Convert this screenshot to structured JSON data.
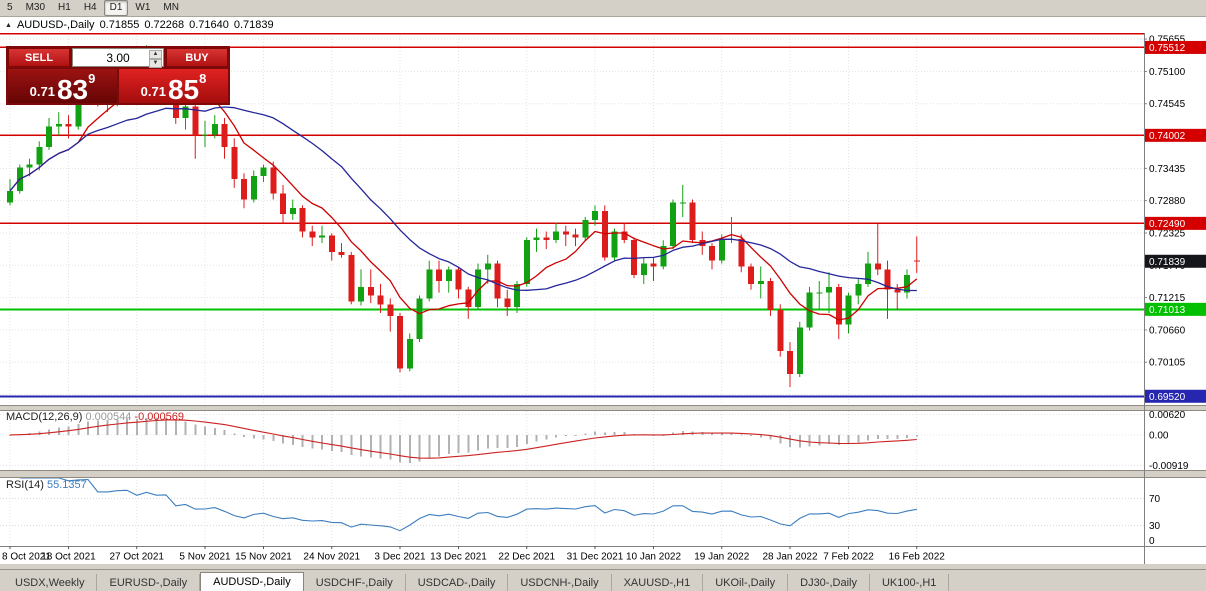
{
  "toolbar": {
    "timeframes": [
      "5",
      "M30",
      "H1",
      "H4",
      "D1",
      "W1",
      "MN"
    ],
    "active": "D1"
  },
  "title": {
    "collapse": "▲",
    "symbol": "AUDUSD-,Daily",
    "open": "0.71855",
    "high": "0.72268",
    "low": "0.71640",
    "close": "0.71839"
  },
  "trade_panel": {
    "sell_label": "SELL",
    "buy_label": "BUY",
    "volume": "3.00",
    "sell_price_small": "0.71",
    "sell_price_big": "83",
    "sell_price_sup": "9",
    "buy_price_small": "0.71",
    "buy_price_big": "85",
    "buy_price_sup": "8"
  },
  "colors": {
    "chrome": "#d4d0c8",
    "panel_red_dark": "#7d0909",
    "candle_up": "#12a112",
    "candle_down": "#dd1c1c",
    "price_badge": "#15151c",
    "grid": "#e3e3e3",
    "axis_line": "#808080"
  },
  "chart_data": {
    "type": "candlestick",
    "symbol": "AUDUSD-",
    "timeframe": "Daily",
    "candles": [
      [
        0.7285,
        0.7325,
        0.728,
        0.7305
      ],
      [
        0.7305,
        0.735,
        0.73,
        0.7345
      ],
      [
        0.7345,
        0.736,
        0.733,
        0.735
      ],
      [
        0.735,
        0.739,
        0.734,
        0.738
      ],
      [
        0.738,
        0.743,
        0.7375,
        0.7415
      ],
      [
        0.7415,
        0.744,
        0.74,
        0.742
      ],
      [
        0.742,
        0.7435,
        0.7395,
        0.7415
      ],
      [
        0.7415,
        0.748,
        0.741,
        0.7475
      ],
      [
        0.7475,
        0.7545,
        0.747,
        0.7515
      ],
      [
        0.7515,
        0.752,
        0.745,
        0.7465
      ],
      [
        0.7465,
        0.748,
        0.744,
        0.7465
      ],
      [
        0.7465,
        0.75,
        0.745,
        0.749
      ],
      [
        0.749,
        0.7535,
        0.748,
        0.75
      ],
      [
        0.75,
        0.751,
        0.7455,
        0.747
      ],
      [
        0.747,
        0.7555,
        0.746,
        0.754
      ],
      [
        0.754,
        0.7545,
        0.749,
        0.7518
      ],
      [
        0.7518,
        0.7535,
        0.75,
        0.7525
      ],
      [
        0.7525,
        0.753,
        0.742,
        0.743
      ],
      [
        0.743,
        0.747,
        0.741,
        0.745
      ],
      [
        0.745,
        0.7455,
        0.736,
        0.74
      ],
      [
        0.74,
        0.7425,
        0.738,
        0.7402
      ],
      [
        0.7402,
        0.7435,
        0.7395,
        0.742
      ],
      [
        0.742,
        0.743,
        0.736,
        0.738
      ],
      [
        0.738,
        0.7395,
        0.731,
        0.7325
      ],
      [
        0.7325,
        0.7335,
        0.7275,
        0.729
      ],
      [
        0.729,
        0.734,
        0.7285,
        0.733
      ],
      [
        0.733,
        0.735,
        0.732,
        0.7345
      ],
      [
        0.7345,
        0.7355,
        0.729,
        0.73
      ],
      [
        0.73,
        0.7315,
        0.725,
        0.7265
      ],
      [
        0.7265,
        0.729,
        0.7255,
        0.7275
      ],
      [
        0.7275,
        0.728,
        0.7225,
        0.7235
      ],
      [
        0.7235,
        0.7245,
        0.721,
        0.7225
      ],
      [
        0.7225,
        0.7245,
        0.7215,
        0.7228
      ],
      [
        0.7228,
        0.7232,
        0.7185,
        0.72
      ],
      [
        0.72,
        0.7215,
        0.719,
        0.7195
      ],
      [
        0.7195,
        0.72,
        0.711,
        0.7115
      ],
      [
        0.7115,
        0.717,
        0.7108,
        0.714
      ],
      [
        0.714,
        0.717,
        0.7112,
        0.7125
      ],
      [
        0.7125,
        0.7145,
        0.7095,
        0.711
      ],
      [
        0.711,
        0.712,
        0.7063,
        0.709
      ],
      [
        0.709,
        0.7095,
        0.6993,
        0.7
      ],
      [
        0.7,
        0.706,
        0.6995,
        0.705
      ],
      [
        0.705,
        0.7125,
        0.7045,
        0.712
      ],
      [
        0.712,
        0.7185,
        0.7115,
        0.717
      ],
      [
        0.717,
        0.7185,
        0.713,
        0.715
      ],
      [
        0.715,
        0.7175,
        0.713,
        0.717
      ],
      [
        0.717,
        0.7175,
        0.712,
        0.7135
      ],
      [
        0.7135,
        0.714,
        0.7085,
        0.7105
      ],
      [
        0.7105,
        0.718,
        0.71,
        0.717
      ],
      [
        0.717,
        0.7195,
        0.7145,
        0.718
      ],
      [
        0.718,
        0.7185,
        0.7105,
        0.712
      ],
      [
        0.712,
        0.7135,
        0.709,
        0.7105
      ],
      [
        0.7105,
        0.715,
        0.7095,
        0.7145
      ],
      [
        0.7145,
        0.7225,
        0.714,
        0.722
      ],
      [
        0.722,
        0.724,
        0.72,
        0.7225
      ],
      [
        0.7225,
        0.7235,
        0.7205,
        0.722
      ],
      [
        0.722,
        0.725,
        0.7215,
        0.7235
      ],
      [
        0.7235,
        0.7245,
        0.721,
        0.723
      ],
      [
        0.723,
        0.724,
        0.721,
        0.7225
      ],
      [
        0.7225,
        0.726,
        0.722,
        0.7255
      ],
      [
        0.7255,
        0.728,
        0.7245,
        0.727
      ],
      [
        0.727,
        0.728,
        0.7185,
        0.719
      ],
      [
        0.719,
        0.724,
        0.7185,
        0.7235
      ],
      [
        0.7235,
        0.725,
        0.7215,
        0.722
      ],
      [
        0.722,
        0.7225,
        0.7155,
        0.716
      ],
      [
        0.716,
        0.719,
        0.7145,
        0.718
      ],
      [
        0.718,
        0.719,
        0.715,
        0.7175
      ],
      [
        0.7175,
        0.722,
        0.717,
        0.721
      ],
      [
        0.721,
        0.729,
        0.7205,
        0.7285
      ],
      [
        0.7285,
        0.7315,
        0.726,
        0.7285
      ],
      [
        0.7285,
        0.729,
        0.7215,
        0.722
      ],
      [
        0.722,
        0.7235,
        0.7195,
        0.721
      ],
      [
        0.721,
        0.7215,
        0.717,
        0.7185
      ],
      [
        0.7185,
        0.723,
        0.718,
        0.722
      ],
      [
        0.722,
        0.726,
        0.7215,
        0.7222
      ],
      [
        0.7222,
        0.723,
        0.7165,
        0.7175
      ],
      [
        0.7175,
        0.718,
        0.7135,
        0.7145
      ],
      [
        0.7145,
        0.7175,
        0.712,
        0.715
      ],
      [
        0.715,
        0.7155,
        0.709,
        0.71
      ],
      [
        0.71,
        0.711,
        0.702,
        0.703
      ],
      [
        0.703,
        0.7045,
        0.6968,
        0.699
      ],
      [
        0.699,
        0.708,
        0.6985,
        0.707
      ],
      [
        0.707,
        0.714,
        0.7065,
        0.713
      ],
      [
        0.713,
        0.715,
        0.71,
        0.713
      ],
      [
        0.713,
        0.7165,
        0.7095,
        0.714
      ],
      [
        0.714,
        0.7145,
        0.705,
        0.7075
      ],
      [
        0.7075,
        0.713,
        0.706,
        0.7125
      ],
      [
        0.7125,
        0.7155,
        0.711,
        0.7145
      ],
      [
        0.7145,
        0.72,
        0.714,
        0.718
      ],
      [
        0.718,
        0.7249,
        0.716,
        0.717
      ],
      [
        0.717,
        0.7185,
        0.7085,
        0.7135
      ],
      [
        0.7135,
        0.7145,
        0.71,
        0.713
      ],
      [
        0.713,
        0.717,
        0.712,
        0.716
      ],
      [
        0.71855,
        0.72268,
        0.7164,
        0.71839
      ]
    ],
    "date_ticks": [
      [
        0,
        "8 Oct 2021"
      ],
      [
        6,
        "18 Oct 2021"
      ],
      [
        13,
        "27 Oct 2021"
      ],
      [
        20,
        "5 Nov 2021"
      ],
      [
        26,
        "15 Nov 2021"
      ],
      [
        33,
        "24 Nov 2021"
      ],
      [
        40,
        "3 Dec 2021"
      ],
      [
        46,
        "13 Dec 2021"
      ],
      [
        53,
        "22 Dec 2021"
      ],
      [
        60,
        "31 Dec 2021"
      ],
      [
        66,
        "10 Jan 2022"
      ],
      [
        73,
        "19 Jan 2022"
      ],
      [
        80,
        "28 Jan 2022"
      ],
      [
        86,
        "7 Feb 2022"
      ],
      [
        93,
        "16 Feb 2022"
      ]
    ],
    "y_axis": [
      {
        "value": 0.75655,
        "label": "0.75655"
      },
      {
        "value": 0.751,
        "label": "0.75100"
      },
      {
        "value": 0.74545,
        "label": "0.74545"
      },
      {
        "value": 0.7399,
        "label": "0.73990"
      },
      {
        "value": 0.73435,
        "label": "0.73435"
      },
      {
        "value": 0.7288,
        "label": "0.72880"
      },
      {
        "value": 0.72325,
        "label": "0.72325"
      },
      {
        "value": 0.7177,
        "label": "0.71770"
      },
      {
        "value": 0.71215,
        "label": "0.71215"
      },
      {
        "value": 0.7066,
        "label": "0.70660"
      },
      {
        "value": 0.70105,
        "label": "0.70105"
      },
      {
        "value": 0.6955,
        "label": "0.69550"
      }
    ],
    "hlines": [
      {
        "value": 0.75745,
        "label": "",
        "color": "#d40000",
        "width": 1.5
      },
      {
        "value": 0.75512,
        "label": "0.75512",
        "color": "#d40000",
        "width": 1.5
      },
      {
        "value": 0.74002,
        "label": "0.74002",
        "color": "#d40000",
        "width": 1.5
      },
      {
        "value": 0.7249,
        "label": "0.72490",
        "color": "#d40000",
        "width": 1.5
      },
      {
        "value": 0.71013,
        "label": "0.71013",
        "color": "#00c000",
        "width": 2
      },
      {
        "value": 0.6952,
        "label": "0.69520",
        "color": "#2626b0",
        "width": 2
      }
    ],
    "current_price": {
      "value": 0.71839,
      "label": "0.71839"
    },
    "moving_averages": [
      {
        "period": 8,
        "color": "#cc0000"
      },
      {
        "period": 21,
        "color": "#26269c"
      }
    ],
    "macd": {
      "name": "MACD(12,26,9)",
      "value_main": "0.000544",
      "value_signal": "-0.000569",
      "fast": 12,
      "slow": 26,
      "signal": 9,
      "hist_color": "#b2b2b2",
      "signal_color": "#cc2222",
      "axis": [
        {
          "value": 0.0062,
          "label": "0.00620"
        },
        {
          "value": 0,
          "label": "0.00"
        },
        {
          "value": -0.00919,
          "label": "-0.00919"
        }
      ]
    },
    "rsi": {
      "name": "RSI(14)",
      "value": "55.1357",
      "period": 14,
      "color": "#3d7ebf",
      "levels": [
        {
          "value": 70,
          "label": "70"
        },
        {
          "value": 30,
          "label": "30"
        },
        {
          "value": 0,
          "label": "0"
        }
      ]
    }
  },
  "tabs": {
    "items": [
      "USDX,Weekly",
      "EURUSD-,Daily",
      "AUDUSD-,Daily",
      "USDCHF-,Daily",
      "USDCAD-,Daily",
      "USDCNH-,Daily",
      "XAUUSD-,H1",
      "UKOil-,Daily",
      "DJ30-,Daily",
      "UK100-,H1"
    ],
    "active": "AUDUSD-,Daily"
  }
}
